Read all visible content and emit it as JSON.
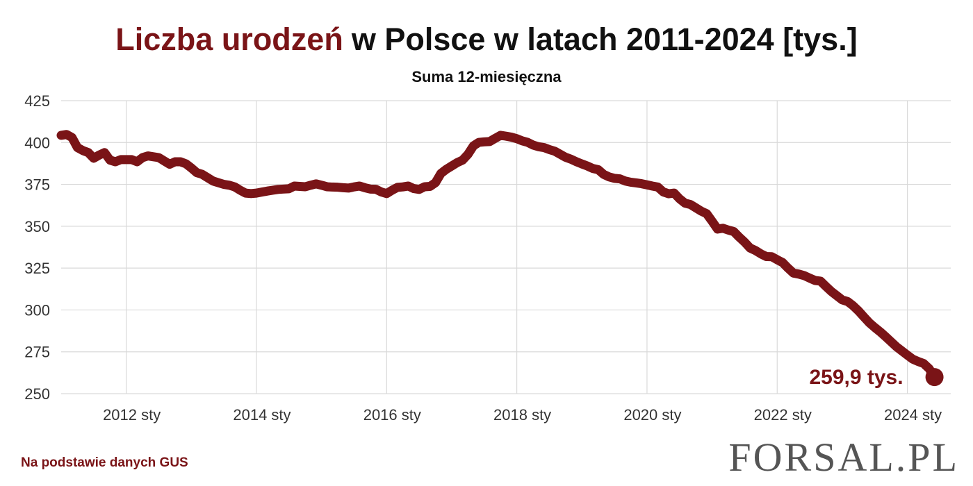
{
  "chart_data": {
    "type": "line",
    "title": [
      "Liczba urodzeń",
      "w Polsce w latach 2011-2024 [tys.]"
    ],
    "subtitle": "Suma 12-miesięczna",
    "source": "Na podstawie danych GUS",
    "logo": "FORSAL.PL",
    "color": "#7a1417",
    "grid": true,
    "x": [
      "2011-01",
      "2011-02",
      "2011-03",
      "2011-04",
      "2011-05",
      "2011-06",
      "2011-07",
      "2011-08",
      "2011-09",
      "2011-10",
      "2011-11",
      "2011-12",
      "2012-01",
      "2012-02",
      "2012-03",
      "2012-04",
      "2012-05",
      "2012-06",
      "2012-07",
      "2012-08",
      "2012-09",
      "2012-10",
      "2012-11",
      "2012-12",
      "2013-01",
      "2013-02",
      "2013-03",
      "2013-04",
      "2013-05",
      "2013-06",
      "2013-07",
      "2013-08",
      "2013-09",
      "2013-10",
      "2013-11",
      "2013-12",
      "2014-01",
      "2014-02",
      "2014-03",
      "2014-04",
      "2014-05",
      "2014-06",
      "2014-07",
      "2014-08",
      "2014-09",
      "2014-10",
      "2014-11",
      "2014-12",
      "2015-01",
      "2015-02",
      "2015-03",
      "2015-04",
      "2015-05",
      "2015-06",
      "2015-07",
      "2015-08",
      "2015-09",
      "2015-10",
      "2015-11",
      "2015-12",
      "2016-01",
      "2016-02",
      "2016-03",
      "2016-04",
      "2016-05",
      "2016-06",
      "2016-07",
      "2016-08",
      "2016-09",
      "2016-10",
      "2016-11",
      "2016-12",
      "2017-01",
      "2017-02",
      "2017-03",
      "2017-04",
      "2017-05",
      "2017-06",
      "2017-07",
      "2017-08",
      "2017-09",
      "2017-10",
      "2017-11",
      "2017-12",
      "2018-01",
      "2018-02",
      "2018-03",
      "2018-04",
      "2018-05",
      "2018-06",
      "2018-07",
      "2018-08",
      "2018-09",
      "2018-10",
      "2018-11",
      "2018-12",
      "2019-01",
      "2019-02",
      "2019-03",
      "2019-04",
      "2019-05",
      "2019-06",
      "2019-07",
      "2019-08",
      "2019-09",
      "2019-10",
      "2019-11",
      "2019-12",
      "2020-01",
      "2020-02",
      "2020-03",
      "2020-04",
      "2020-05",
      "2020-06",
      "2020-07",
      "2020-08",
      "2020-09",
      "2020-10",
      "2020-11",
      "2020-12",
      "2021-01",
      "2021-02",
      "2021-03",
      "2021-04",
      "2021-05",
      "2021-06",
      "2021-07",
      "2021-08",
      "2021-09",
      "2021-10",
      "2021-11",
      "2021-12",
      "2022-01",
      "2022-02",
      "2022-03",
      "2022-04",
      "2022-05",
      "2022-06",
      "2022-07",
      "2022-08",
      "2022-09",
      "2022-10",
      "2022-11",
      "2022-12",
      "2023-01",
      "2023-02",
      "2023-03",
      "2023-04",
      "2023-05",
      "2023-06",
      "2023-07",
      "2023-08",
      "2023-09",
      "2023-10",
      "2023-11",
      "2023-12",
      "2024-01",
      "2024-02",
      "2024-03",
      "2024-04",
      "2024-05",
      "2024-06"
    ],
    "values": [
      404.3,
      404.8,
      403,
      397,
      395.2,
      394,
      390.6,
      392.5,
      394,
      389.5,
      388.5,
      389.8,
      389.8,
      389.8,
      388.5,
      391,
      392,
      391.5,
      391,
      389,
      387,
      388.5,
      388.5,
      387.3,
      384.8,
      382,
      381,
      379,
      377,
      376,
      375,
      374.5,
      373.5,
      371.5,
      369.8,
      369.5,
      369.8,
      370.4,
      371,
      371.5,
      372,
      372.2,
      372.4,
      374,
      373.8,
      373.6,
      374.5,
      375.3,
      374.5,
      373.6,
      373.4,
      373.3,
      373,
      372.8,
      373.5,
      374,
      373,
      372.2,
      372.1,
      370.5,
      369.5,
      371.5,
      373.2,
      373.5,
      374,
      372.5,
      372,
      373.6,
      373.8,
      376,
      381.5,
      384,
      386,
      388,
      389.5,
      393,
      398,
      400.1,
      400.4,
      400.6,
      402.5,
      404.3,
      403.8,
      403.2,
      402.3,
      401,
      400.1,
      398.5,
      397.5,
      397,
      395.8,
      394.8,
      393,
      391.2,
      390,
      388.5,
      387.2,
      386,
      384.5,
      383.8,
      381,
      379.5,
      378.6,
      378.3,
      377,
      376.3,
      375.9,
      375.4,
      374.7,
      374,
      373.4,
      370.5,
      369.4,
      369.8,
      366.4,
      363.8,
      363,
      361,
      359,
      357.5,
      353,
      348.3,
      348.8,
      347.7,
      346.8,
      343.5,
      340.5,
      337,
      335.5,
      333.5,
      331.9,
      331.8,
      330,
      328.3,
      325,
      322,
      321.4,
      320.5,
      319,
      317.6,
      317.2,
      314,
      311,
      308.5,
      306,
      305,
      302.5,
      299.4,
      295.8,
      292.3,
      289.5,
      286.9,
      284,
      281,
      278,
      275.5,
      273,
      270.6,
      269.2,
      268,
      265,
      259.9
    ],
    "value_labels": [
      null,
      null,
      null,
      null,
      null,
      null,
      null,
      null,
      null,
      null,
      null,
      null,
      null,
      null,
      null,
      null,
      null,
      null,
      null,
      null,
      null,
      null,
      null,
      null,
      null,
      null,
      null,
      null,
      null,
      null,
      null,
      null,
      null,
      null,
      null,
      null,
      null,
      null,
      null,
      null,
      null,
      null,
      null,
      null,
      null,
      null,
      null,
      null,
      null,
      null,
      null,
      null,
      null,
      null,
      null,
      null,
      null,
      null,
      null,
      null,
      null,
      null,
      null,
      null,
      null,
      null,
      null,
      null,
      null,
      null,
      null,
      null,
      null,
      null,
      null,
      null,
      null,
      null,
      null,
      null,
      null,
      null,
      null,
      null,
      null,
      null,
      null,
      null,
      null,
      null,
      null,
      null,
      null,
      null,
      null,
      null,
      null,
      null,
      null,
      null,
      null,
      null,
      null,
      null,
      null,
      null,
      null,
      null,
      null,
      null,
      null,
      null,
      null,
      null,
      null,
      null,
      null,
      null,
      null,
      null,
      null,
      null,
      null,
      null,
      null,
      null,
      null,
      null,
      null,
      null,
      null,
      null,
      null,
      null,
      null,
      null,
      null,
      null,
      null,
      null,
      null,
      null,
      null,
      null,
      null,
      null,
      null,
      null,
      null,
      null,
      null,
      null,
      null,
      null,
      null,
      null,
      null,
      null,
      null,
      null,
      null,
      "259,9 tys."
    ],
    "xlim": [
      "2011-01",
      "2024-09"
    ],
    "xticks": [
      {
        "value": "2012-01",
        "label": "2012 sty"
      },
      {
        "value": "2014-01",
        "label": "2014 sty"
      },
      {
        "value": "2016-01",
        "label": "2016 sty"
      },
      {
        "value": "2018-01",
        "label": "2018 sty"
      },
      {
        "value": "2020-01",
        "label": "2020 sty"
      },
      {
        "value": "2022-01",
        "label": "2022 sty"
      },
      {
        "value": "2024-01",
        "label": "2024 sty"
      }
    ],
    "ylim": [
      250,
      425
    ],
    "yticks": [
      250,
      275,
      300,
      325,
      350,
      375,
      400,
      425
    ]
  }
}
